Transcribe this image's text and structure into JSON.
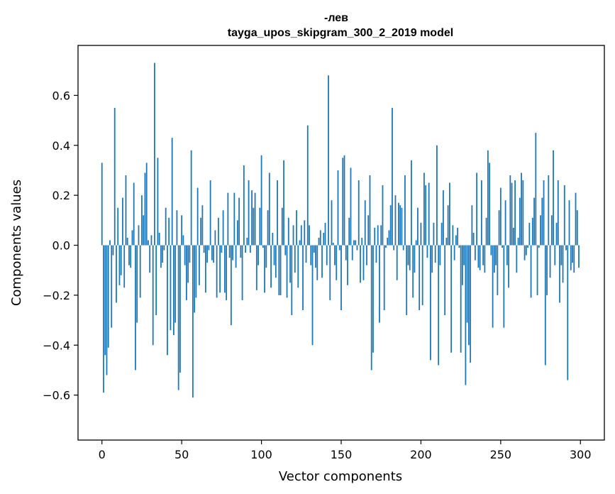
{
  "chart_data": {
    "type": "bar",
    "title": "-лев",
    "subtitle": "tayga_upos_skipgram_300_2_2019 model",
    "xlabel": "Vector components",
    "ylabel": "Components values",
    "xlim": [
      -15,
      315
    ],
    "ylim": [
      -0.78,
      0.8
    ],
    "x_ticks": [
      0,
      50,
      100,
      150,
      200,
      250,
      300
    ],
    "x_tick_labels": [
      "0",
      "50",
      "100",
      "150",
      "200",
      "250",
      "300"
    ],
    "y_ticks": [
      -0.6,
      -0.4,
      -0.2,
      0.0,
      0.2,
      0.4,
      0.6
    ],
    "y_tick_labels": [
      "−0.6",
      "−0.4",
      "−0.2",
      "0.0",
      "0.2",
      "0.4",
      "0.6"
    ],
    "grid": false,
    "bar_color": "#1f77b4",
    "values": [
      0.33,
      -0.59,
      -0.44,
      -0.52,
      -0.41,
      0.02,
      -0.33,
      -0.04,
      0.55,
      -0.23,
      0.15,
      -0.16,
      -0.12,
      0.19,
      -0.17,
      0.28,
      0.03,
      -0.08,
      -0.09,
      0.06,
      0.25,
      -0.5,
      -0.31,
      0.08,
      -0.21,
      0.2,
      0.12,
      0.29,
      0.33,
      0.02,
      -0.11,
      0.04,
      -0.4,
      0.73,
      -0.28,
      0.35,
      0.05,
      -0.09,
      -0.07,
      -0.02,
      0.15,
      -0.44,
      0.11,
      -0.34,
      0.43,
      -0.36,
      -0.31,
      0.14,
      -0.58,
      -0.51,
      0.12,
      0.04,
      -0.08,
      -0.22,
      -0.15,
      -0.07,
      0.38,
      -0.61,
      -0.27,
      -0.21,
      0.23,
      -0.16,
      0.11,
      0.16,
      -0.03,
      -0.19,
      -0.07,
      -0.02,
      0.26,
      -0.06,
      -0.07,
      0.06,
      -0.21,
      0.11,
      -0.19,
      -0.03,
      0.14,
      -0.19,
      -0.22,
      0.21,
      -0.05,
      -0.32,
      -0.06,
      0.21,
      -0.09,
      0.1,
      0.19,
      -0.05,
      -0.22,
      0.32,
      -0.03,
      0.03,
      0.26,
      -0.03,
      0.22,
      0.15,
      0.21,
      -0.18,
      -0.08,
      0.15,
      0.36,
      -0.01,
      -0.19,
      -0.09,
      0.14,
      0.29,
      -0.17,
      0.05,
      -0.08,
      -0.13,
      0.26,
      -0.2,
      -0.2,
      0.15,
      0.34,
      -0.04,
      -0.21,
      0.11,
      -0.15,
      -0.28,
      0.08,
      -0.11,
      0.14,
      -0.17,
      0.02,
      0.08,
      -0.26,
      0.1,
      -0.07,
      0.48,
      0.08,
      -0.08,
      -0.4,
      -0.03,
      -0.09,
      -0.14,
      0.03,
      0.06,
      -0.13,
      0.05,
      0.09,
      -0.08,
      0.68,
      -0.22,
      0.18,
      0.01,
      -0.08,
      -0.14,
      0.3,
      -0.02,
      -0.26,
      0.35,
      0.36,
      -0.06,
      -0.16,
      0.11,
      0.31,
      -0.06,
      0.02,
      0.02,
      -0.02,
      0.26,
      -0.15,
      0.03,
      -0.14,
      0.18,
      -0.08,
      0.12,
      0.28,
      -0.5,
      -0.43,
      0.07,
      -0.07,
      0.08,
      -0.31,
      0.08,
      0.24,
      -0.26,
      -0.01,
      0.03,
      0.06,
      0.16,
      0.55,
      -0.02,
      0.2,
      -0.14,
      0.17,
      0.16,
      0.15,
      -0.02,
      0.28,
      -0.28,
      -0.08,
      -0.1,
      0.34,
      -0.21,
      -0.11,
      0.02,
      0.15,
      -0.26,
      0.09,
      -0.24,
      0.29,
      0.24,
      -0.05,
      0.25,
      -0.46,
      -0.11,
      0.09,
      -0.07,
      0.4,
      -0.48,
      -0.08,
      0.09,
      0.22,
      -0.28,
      0.03,
      0.16,
      0.25,
      -0.43,
      0.08,
      -0.06,
      0.04,
      0.07,
      -0.01,
      -0.43,
      -0.16,
      -0.08,
      -0.56,
      -0.31,
      -0.4,
      -0.47,
      0.16,
      0.05,
      -0.06,
      0.29,
      -0.09,
      -0.1,
      0.26,
      -0.08,
      -0.11,
      0.11,
      0.38,
      0.33,
      -0.04,
      -0.33,
      -0.11,
      -0.08,
      -0.2,
      0.14,
      0.23,
      -0.01,
      -0.33,
      0.18,
      -0.08,
      -0.17,
      0.28,
      0.25,
      0.07,
      0.26,
      -0.11,
      0.03,
      0.19,
      0.29,
      0.26,
      -0.06,
      -0.04,
      -0.01,
      0.09,
      -0.21,
      0.11,
      0.19,
      0.45,
      -0.2,
      -0.01,
      0.12,
      0.19,
      0.26,
      -0.48,
      -0.2,
      0.28,
      -0.13,
      0.12,
      0.38,
      -0.08,
      0.09,
      0.26,
      -0.23,
      -0.08,
      -0.15,
      0.24,
      -0.02,
      -0.54,
      0.18,
      -0.1,
      -0.07,
      -0.11,
      0.21,
      0.14,
      -0.09
    ]
  }
}
